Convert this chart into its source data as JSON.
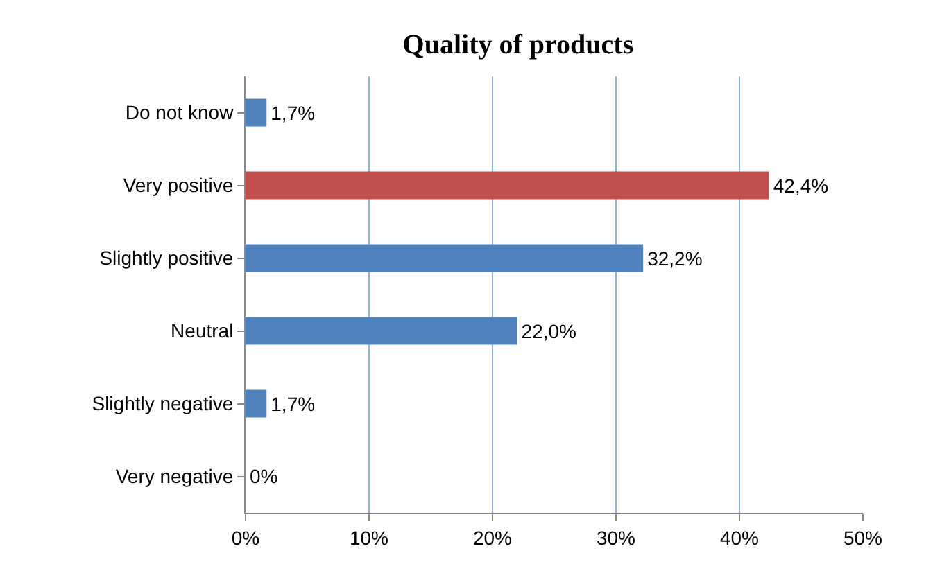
{
  "chart_data": {
    "type": "bar",
    "orientation": "horizontal",
    "title": "Quality of products",
    "categories": [
      "Do not know",
      "Very positive",
      "Slightly positive",
      "Neutral",
      "Slightly negative",
      "Very negative"
    ],
    "values": [
      1.7,
      42.4,
      32.2,
      22.0,
      1.7,
      0
    ],
    "colors": [
      "#4f81bd",
      "#c0504d",
      "#4f81bd",
      "#4f81bd",
      "#4f81bd",
      "#4f81bd"
    ],
    "value_labels": [
      "1,7%",
      "42,4%",
      "32,2%",
      "22,0%",
      "1,7%",
      "0%"
    ],
    "xlim": [
      0,
      50
    ],
    "xticks": [
      {
        "value": 0,
        "label": "0%"
      },
      {
        "value": 10,
        "label": "10%"
      },
      {
        "value": 20,
        "label": "20%"
      },
      {
        "value": 30,
        "label": "30%"
      },
      {
        "value": 40,
        "label": "40%"
      },
      {
        "value": 50,
        "label": "50%"
      }
    ],
    "grid": "x",
    "legend": false
  }
}
